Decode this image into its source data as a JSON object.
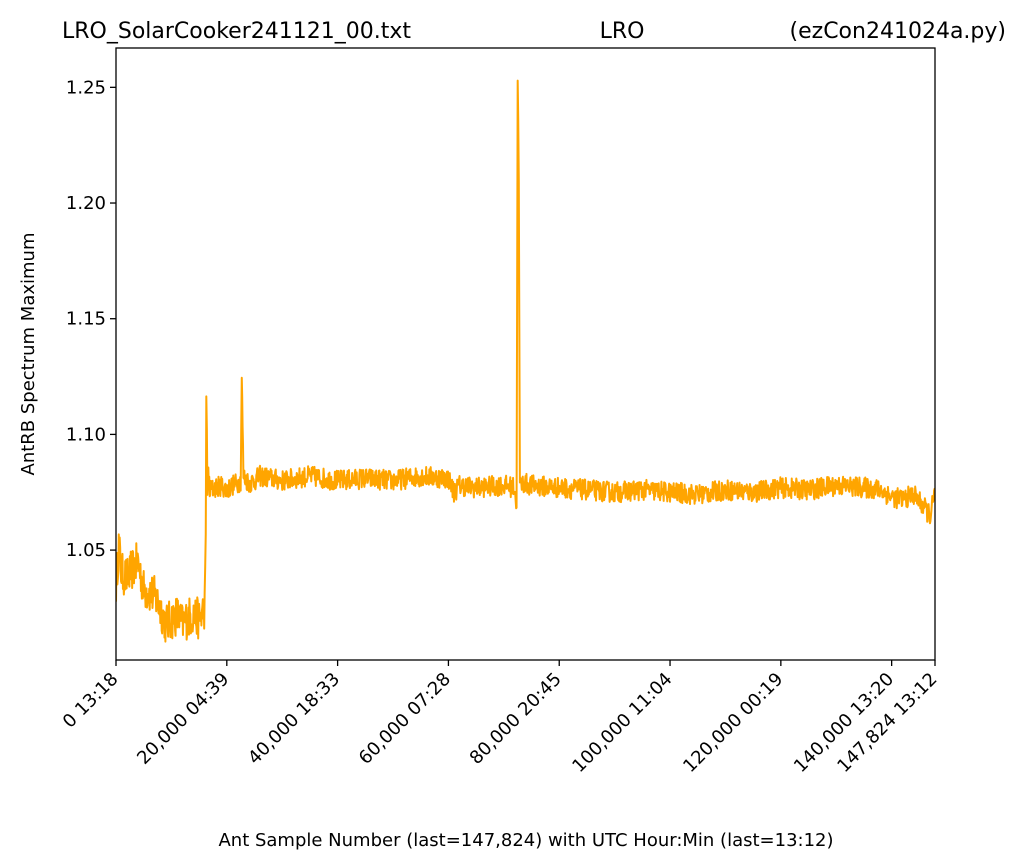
{
  "chart_data": {
    "type": "line",
    "title_left": "LRO_SolarCooker241121_00.txt",
    "title_center": "LRO",
    "title_right": "(ezCon241024a.py)",
    "xlabel": "Ant Sample Number (last=147,824) with UTC Hour:Min (last=13:12)",
    "ylabel": "AntRB Spectrum Maximum",
    "xlim": [
      0,
      147824
    ],
    "ylim": [
      1.0025,
      1.267
    ],
    "grid": false,
    "x_ticks": [
      {
        "value": 0,
        "label": "0  13:18"
      },
      {
        "value": 20000,
        "label": "20,000  04:39"
      },
      {
        "value": 40000,
        "label": "40,000  18:33"
      },
      {
        "value": 60000,
        "label": "60,000  07:28"
      },
      {
        "value": 80000,
        "label": "80,000  20:45"
      },
      {
        "value": 100000,
        "label": "100,000  11:04"
      },
      {
        "value": 120000,
        "label": "120,000  00:19"
      },
      {
        "value": 140000,
        "label": "140,000  13:20"
      },
      {
        "value": 147824,
        "label": "147,824  13:12"
      }
    ],
    "y_ticks": [
      {
        "value": 1.05,
        "label": "1.05"
      },
      {
        "value": 1.1,
        "label": "1.10"
      },
      {
        "value": 1.15,
        "label": "1.15"
      },
      {
        "value": 1.2,
        "label": "1.20"
      },
      {
        "value": 1.25,
        "label": "1.25"
      }
    ],
    "series": [
      {
        "color": "#ffa500",
        "x": [
          0,
          500,
          1000,
          2000,
          3000,
          4000,
          5000,
          6000,
          7000,
          8000,
          9000,
          10000,
          11000,
          12000,
          13000,
          14000,
          15000,
          16000,
          16200,
          16300,
          16400,
          16500,
          17000,
          18000,
          19000,
          20000,
          21000,
          22000,
          22500,
          22700,
          23000,
          24000,
          25000,
          26000,
          28000,
          30000,
          35000,
          40000,
          45000,
          50000,
          55000,
          60000,
          61000,
          62000,
          65000,
          70000,
          72000,
          72300,
          72500,
          72700,
          72900,
          73500,
          75000,
          80000,
          85000,
          90000,
          95000,
          100000,
          105000,
          110000,
          115000,
          120000,
          125000,
          130000,
          135000,
          138000,
          140000,
          142000,
          144000,
          146000,
          147000,
          147824
        ],
        "y": [
          1.035,
          1.052,
          1.04,
          1.038,
          1.042,
          1.045,
          1.033,
          1.032,
          1.03,
          1.025,
          1.018,
          1.02,
          1.022,
          1.018,
          1.021,
          1.022,
          1.02,
          1.025,
          1.05,
          1.118,
          1.1,
          1.08,
          1.076,
          1.077,
          1.078,
          1.076,
          1.078,
          1.079,
          1.08,
          1.125,
          1.082,
          1.079,
          1.08,
          1.082,
          1.081,
          1.08,
          1.082,
          1.08,
          1.081,
          1.08,
          1.082,
          1.081,
          1.075,
          1.078,
          1.077,
          1.078,
          1.077,
          1.066,
          1.256,
          1.21,
          1.078,
          1.079,
          1.078,
          1.077,
          1.076,
          1.075,
          1.076,
          1.075,
          1.074,
          1.076,
          1.075,
          1.077,
          1.076,
          1.078,
          1.077,
          1.076,
          1.073,
          1.072,
          1.074,
          1.068,
          1.065,
          1.075
        ]
      }
    ]
  }
}
